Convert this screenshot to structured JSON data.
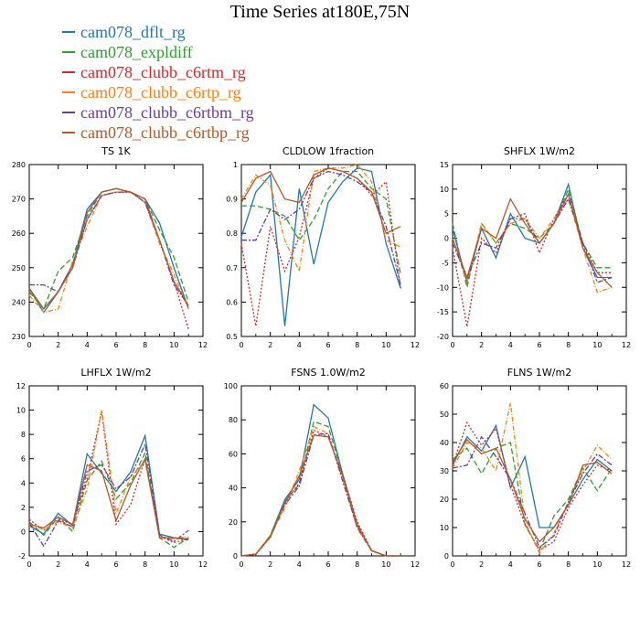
{
  "title": "Time Series at180E,75N",
  "legend": [
    {
      "name": "cam078_dflt_rg",
      "color": "#1f77b4"
    },
    {
      "name": "cam078_expldiff",
      "color": "#2ca02c"
    },
    {
      "name": "cam078_clubb_c6rtm_rg",
      "color": "#d62728"
    },
    {
      "name": "cam078_clubb_c6rtp_rg",
      "color": "#ff7f0e"
    },
    {
      "name": "cam078_clubb_c6rtbm_rg",
      "color": "#6a3d9a"
    },
    {
      "name": "cam078_clubb_c6rtbp_rg",
      "color": "#b15928"
    }
  ],
  "chart_data": [
    {
      "type": "line",
      "title": "TS  1K",
      "xlim": [
        0,
        12
      ],
      "ylim": [
        230,
        280
      ],
      "xticks": [
        0,
        2,
        4,
        6,
        8,
        10,
        12
      ],
      "yticks": [
        230,
        240,
        250,
        260,
        270,
        280
      ],
      "x": [
        0,
        1,
        2,
        3,
        4,
        5,
        6,
        7,
        8,
        9,
        10,
        11
      ],
      "series": [
        {
          "name": "cam078_dflt_rg",
          "values": [
            244,
            237,
            243,
            251,
            267,
            272,
            273,
            272,
            270,
            263,
            250,
            238
          ]
        },
        {
          "name": "cam078_expldiff",
          "values": [
            243,
            238,
            249,
            253,
            265,
            272,
            273,
            272,
            270,
            261,
            253,
            240
          ]
        },
        {
          "name": "cam078_clubb_c6rtm_rg",
          "values": [
            244,
            238,
            243,
            251,
            264,
            271,
            272,
            272,
            269,
            258,
            246,
            232
          ]
        },
        {
          "name": "cam078_clubb_c6rtp_rg",
          "values": [
            242,
            237,
            238,
            252,
            262,
            271,
            272,
            272,
            269,
            257,
            248,
            238
          ]
        },
        {
          "name": "cam078_clubb_c6rtbm_rg",
          "values": [
            245,
            245,
            243,
            250,
            264,
            271,
            272,
            272,
            269,
            258,
            245,
            239
          ]
        },
        {
          "name": "cam078_clubb_c6rtbp_rg",
          "values": [
            244,
            238,
            243,
            250,
            266,
            272,
            273,
            272,
            270,
            258,
            246,
            239
          ]
        }
      ]
    },
    {
      "type": "line",
      "title": "CLDLOW  1fraction",
      "xlim": [
        0,
        12
      ],
      "ylim": [
        0.5,
        1.0
      ],
      "xticks": [
        0,
        2,
        4,
        6,
        8,
        10,
        12
      ],
      "yticks": [
        0.5,
        0.6,
        0.7,
        0.8,
        0.9,
        1.0
      ],
      "x": [
        0,
        1,
        2,
        3,
        4,
        5,
        6,
        7,
        8,
        9,
        10,
        11
      ],
      "series": [
        {
          "name": "cam078_dflt_rg",
          "values": [
            0.79,
            0.92,
            0.97,
            0.53,
            0.93,
            0.71,
            0.89,
            0.95,
            0.99,
            0.98,
            0.77,
            0.64
          ]
        },
        {
          "name": "cam078_expldiff",
          "values": [
            0.88,
            0.88,
            0.87,
            0.85,
            0.78,
            0.84,
            0.93,
            0.98,
            0.98,
            0.93,
            0.9,
            0.68
          ]
        },
        {
          "name": "cam078_clubb_c6rtm_rg",
          "values": [
            0.77,
            0.53,
            0.82,
            0.69,
            0.79,
            0.96,
            0.99,
            0.98,
            0.96,
            0.91,
            0.95,
            0.64
          ]
        },
        {
          "name": "cam078_clubb_c6rtp_rg",
          "values": [
            0.9,
            0.97,
            0.94,
            0.78,
            0.69,
            0.98,
            0.99,
            0.99,
            1.0,
            0.95,
            0.78,
            0.76
          ]
        },
        {
          "name": "cam078_clubb_c6rtbm_rg",
          "values": [
            0.78,
            0.78,
            0.87,
            0.84,
            0.87,
            0.96,
            0.98,
            0.97,
            0.95,
            0.92,
            0.82,
            0.65
          ]
        },
        {
          "name": "cam078_clubb_c6rtbp_rg",
          "values": [
            0.89,
            0.96,
            0.98,
            0.9,
            0.89,
            0.97,
            0.99,
            0.98,
            0.96,
            0.92,
            0.8,
            0.82
          ]
        }
      ]
    },
    {
      "type": "line",
      "title": "SHFLX  1W/m2",
      "xlim": [
        0,
        12
      ],
      "ylim": [
        -20,
        15
      ],
      "xticks": [
        0,
        2,
        4,
        6,
        8,
        10,
        12
      ],
      "yticks": [
        -20,
        -15,
        -10,
        -5,
        0,
        5,
        10,
        15
      ],
      "x": [
        0,
        1,
        2,
        3,
        4,
        5,
        6,
        7,
        8,
        9,
        10,
        11
      ],
      "series": [
        {
          "name": "cam078_dflt_rg",
          "values": [
            2,
            -9,
            2,
            -4,
            5,
            0,
            -1,
            3,
            11,
            -2,
            -8,
            -8
          ]
        },
        {
          "name": "cam078_expldiff",
          "values": [
            3,
            -10,
            3,
            -1,
            3,
            2,
            0,
            3,
            10,
            -1,
            -6,
            -6
          ]
        },
        {
          "name": "cam078_clubb_c6rtm_rg",
          "values": [
            -2,
            -18,
            0,
            -3,
            4,
            5,
            -3,
            4,
            9,
            -1,
            -7,
            -7
          ]
        },
        {
          "name": "cam078_clubb_c6rtp_rg",
          "values": [
            0,
            -9,
            3,
            -1,
            3,
            4,
            0,
            4,
            8,
            -2,
            -11,
            -10
          ]
        },
        {
          "name": "cam078_clubb_c6rtbm_rg",
          "values": [
            -1,
            -8,
            -1,
            -2,
            4,
            4,
            -1,
            3,
            8,
            -1,
            -9,
            -8
          ]
        },
        {
          "name": "cam078_clubb_c6rtbp_rg",
          "values": [
            0,
            -8,
            2,
            0,
            8,
            3,
            -1,
            3,
            9,
            -2,
            -7,
            -10
          ]
        }
      ]
    },
    {
      "type": "line",
      "title": "LHFLX  1W/m2",
      "xlim": [
        0,
        12
      ],
      "ylim": [
        -2,
        12
      ],
      "xticks": [
        0,
        2,
        4,
        6,
        8,
        10,
        12
      ],
      "yticks": [
        -2,
        0,
        2,
        4,
        6,
        8,
        10,
        12
      ],
      "x": [
        0,
        1,
        2,
        3,
        4,
        5,
        6,
        7,
        8,
        9,
        10,
        11
      ],
      "series": [
        {
          "name": "cam078_dflt_rg",
          "values": [
            0.5,
            -0.2,
            1.5,
            0.5,
            6.4,
            4.8,
            3.3,
            4.9,
            7.9,
            -0.2,
            -0.5,
            -0.7
          ]
        },
        {
          "name": "cam078_expldiff",
          "values": [
            0.8,
            -0.3,
            1.2,
            0.0,
            4.2,
            5.8,
            2.7,
            4.0,
            6.5,
            -0.5,
            -1.3,
            -0.5
          ]
        },
        {
          "name": "cam078_clubb_c6rtm_rg",
          "values": [
            1.0,
            0.1,
            1.0,
            0.6,
            4.4,
            9.9,
            0.6,
            2.2,
            6.0,
            -0.4,
            -0.9,
            -0.6
          ]
        },
        {
          "name": "cam078_clubb_c6rtp_rg",
          "values": [
            0.5,
            0.2,
            0.8,
            0.3,
            3.5,
            10.0,
            1.5,
            4.5,
            5.8,
            -0.4,
            -0.6,
            -0.4
          ]
        },
        {
          "name": "cam078_clubb_c6rtbm_rg",
          "values": [
            0.7,
            -1.2,
            0.9,
            0.4,
            5.0,
            5.5,
            3.5,
            4.5,
            7.2,
            -0.3,
            -0.8,
            0.1
          ]
        },
        {
          "name": "cam078_clubb_c6rtbp_rg",
          "values": [
            0.6,
            0.3,
            1.2,
            0.6,
            5.5,
            5.0,
            0.9,
            3.8,
            6.0,
            -0.5,
            -0.5,
            -0.6
          ]
        }
      ]
    },
    {
      "type": "line",
      "title": "FSNS  1.0W/m2",
      "xlim": [
        0,
        12
      ],
      "ylim": [
        0,
        100
      ],
      "xticks": [
        0,
        2,
        4,
        6,
        8,
        10,
        12
      ],
      "yticks": [
        0,
        20,
        40,
        60,
        80,
        100
      ],
      "x": [
        0,
        1,
        2,
        3,
        4,
        5,
        6,
        7,
        8,
        9,
        10,
        11
      ],
      "series": [
        {
          "name": "cam078_dflt_rg",
          "values": [
            0,
            1,
            12,
            33,
            45,
            89,
            81,
            48,
            18,
            3,
            0,
            0
          ]
        },
        {
          "name": "cam078_expldiff",
          "values": [
            0,
            1,
            12,
            32,
            42,
            79,
            76,
            48,
            19,
            3,
            0,
            0
          ]
        },
        {
          "name": "cam078_clubb_c6rtm_rg",
          "values": [
            0,
            1,
            11,
            31,
            43,
            74,
            70,
            48,
            20,
            3,
            0,
            0
          ]
        },
        {
          "name": "cam078_clubb_c6rtp_rg",
          "values": [
            0,
            1,
            12,
            28,
            50,
            76,
            72,
            45,
            16,
            3,
            0,
            0
          ]
        },
        {
          "name": "cam078_clubb_c6rtbm_rg",
          "values": [
            0,
            1,
            11,
            30,
            41,
            71,
            72,
            44,
            17,
            3,
            0,
            0
          ]
        },
        {
          "name": "cam078_clubb_c6rtbp_rg",
          "values": [
            0,
            1,
            11,
            31,
            47,
            71,
            70,
            47,
            18,
            3,
            0,
            0
          ]
        }
      ]
    },
    {
      "type": "line",
      "title": "FLNS  1W/m2",
      "xlim": [
        0,
        12
      ],
      "ylim": [
        0,
        60
      ],
      "xticks": [
        0,
        2,
        4,
        6,
        8,
        10,
        12
      ],
      "yticks": [
        0,
        10,
        20,
        30,
        40,
        50,
        60
      ],
      "x": [
        0,
        1,
        2,
        3,
        4,
        5,
        6,
        7,
        8,
        9,
        10,
        11
      ],
      "series": [
        {
          "name": "cam078_dflt_rg",
          "values": [
            32,
            42,
            37,
            46,
            24,
            35,
            10,
            10,
            18,
            27,
            34,
            30
          ]
        },
        {
          "name": "cam078_expldiff",
          "values": [
            34,
            38,
            29,
            38,
            40,
            11,
            2,
            14,
            20,
            31,
            23,
            31
          ]
        },
        {
          "name": "cam078_clubb_c6rtm_rg",
          "values": [
            32,
            47,
            39,
            45,
            25,
            11,
            2,
            5,
            17,
            25,
            32,
            30
          ]
        },
        {
          "name": "cam078_clubb_c6rtp_rg",
          "values": [
            31,
            40,
            38,
            30,
            54,
            12,
            1,
            8,
            19,
            30,
            39,
            34
          ]
        },
        {
          "name": "cam078_clubb_c6rtbm_rg",
          "values": [
            31,
            32,
            42,
            35,
            27,
            15,
            3,
            7,
            19,
            29,
            36,
            32
          ]
        },
        {
          "name": "cam078_clubb_c6rtbp_rg",
          "values": [
            33,
            41,
            36,
            38,
            27,
            13,
            5,
            10,
            18,
            32,
            33,
            29
          ]
        }
      ]
    }
  ]
}
